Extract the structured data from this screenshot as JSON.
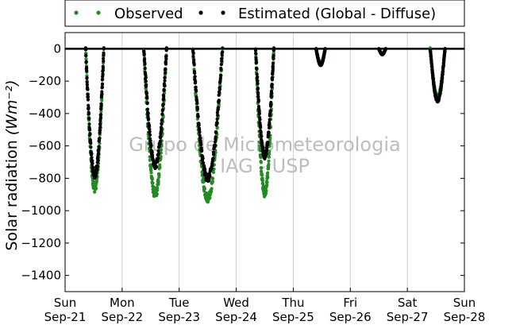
{
  "chart_data": {
    "type": "scatter",
    "title": "",
    "ylabel": "Solar radiation",
    "ylabel_unit": "(Wm⁻²)",
    "ylim": [
      -1500,
      100
    ],
    "xlim": [
      0,
      7
    ],
    "yticks": [
      0,
      -200,
      -400,
      -600,
      -800,
      -1000,
      -1200,
      -1400
    ],
    "x_ticks": [
      {
        "day": 0,
        "weekday": "Sun",
        "date": "Sep-21"
      },
      {
        "day": 1,
        "weekday": "Mon",
        "date": "Sep-22"
      },
      {
        "day": 2,
        "weekday": "Tue",
        "date": "Sep-23"
      },
      {
        "day": 3,
        "weekday": "Wed",
        "date": "Sep-24"
      },
      {
        "day": 4,
        "weekday": "Thu",
        "date": "Sep-25"
      },
      {
        "day": 5,
        "weekday": "Fri",
        "date": "Sep-26"
      },
      {
        "day": 6,
        "weekday": "Sat",
        "date": "Sep-27"
      },
      {
        "day": 7,
        "weekday": "Sun",
        "date": "Sep-28"
      }
    ],
    "grid": "vertical",
    "legend_position": "top",
    "watermark": [
      "Grupo de Micrometeorologia",
      "IAG - USP"
    ],
    "series": [
      {
        "name": "Observed",
        "color": "#228B22",
        "marker": "dot",
        "daily_peaks": [
          {
            "day": 0,
            "start": 0.36,
            "end": 0.68,
            "peak": -860
          },
          {
            "day": 1,
            "start": 0.38,
            "end": 0.78,
            "peak": -900
          },
          {
            "day": 2,
            "start": 0.24,
            "end": 0.76,
            "peak": -920
          },
          {
            "day": 3,
            "start": 0.34,
            "end": 0.66,
            "peak": -890
          },
          {
            "day": 4,
            "start": 0.4,
            "end": 0.56,
            "peak": -90
          },
          {
            "day": 5,
            "start": 0.5,
            "end": 0.62,
            "peak": -30
          },
          {
            "day": 6,
            "start": 0.4,
            "end": 0.66,
            "peak": -300
          }
        ]
      },
      {
        "name": "Estimated (Global - Diffuse)",
        "color": "#000000",
        "marker": "dot",
        "daily_peaks": [
          {
            "day": 0,
            "start": 0.36,
            "end": 0.68,
            "peak": -780
          },
          {
            "day": 1,
            "start": 0.38,
            "end": 0.78,
            "peak": -720
          },
          {
            "day": 2,
            "start": 0.24,
            "end": 0.76,
            "peak": -800
          },
          {
            "day": 3,
            "start": 0.34,
            "end": 0.66,
            "peak": -660
          },
          {
            "day": 4,
            "start": 0.4,
            "end": 0.56,
            "peak": -100
          },
          {
            "day": 5,
            "start": 0.5,
            "end": 0.62,
            "peak": -35
          },
          {
            "day": 6,
            "start": 0.4,
            "end": 0.66,
            "peak": -320
          }
        ]
      }
    ]
  }
}
